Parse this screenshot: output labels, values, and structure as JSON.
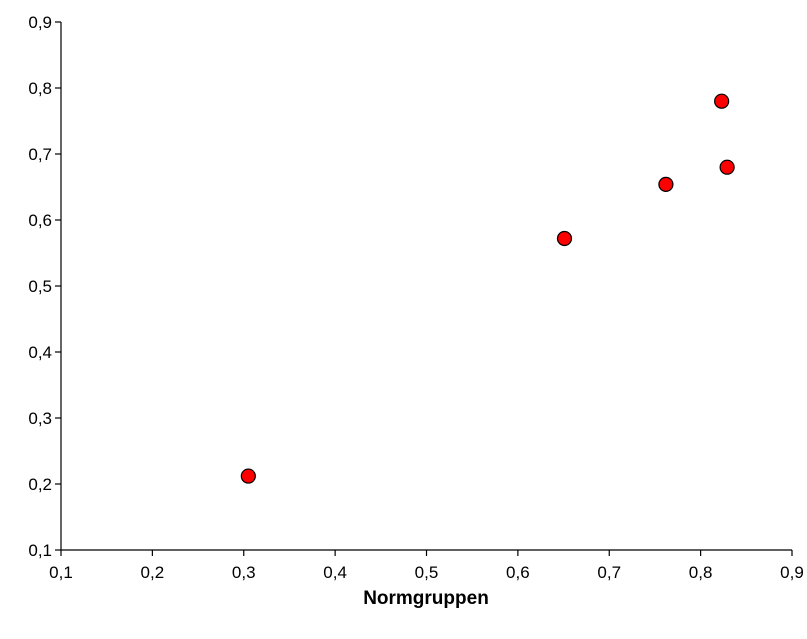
{
  "chart_data": {
    "type": "scatter",
    "title": "",
    "xlabel": "Normgruppen",
    "ylabel": "",
    "xlim": [
      0.1,
      0.9
    ],
    "ylim": [
      0.1,
      0.9
    ],
    "x_ticks": [
      "0,1",
      "0,2",
      "0,3",
      "0,4",
      "0,5",
      "0,6",
      "0,7",
      "0,8",
      "0,9"
    ],
    "y_ticks": [
      "0,1",
      "0,2",
      "0,3",
      "0,4",
      "0,5",
      "0,6",
      "0,7",
      "0,8",
      "0,9"
    ],
    "grid": false,
    "legend": "none",
    "marker_color": "#ff0000",
    "marker_edge_color": "#000000",
    "series": [
      {
        "points": [
          {
            "x": 0.305,
            "y": 0.212
          },
          {
            "x": 0.651,
            "y": 0.572
          },
          {
            "x": 0.762,
            "y": 0.654
          },
          {
            "x": 0.823,
            "y": 0.78
          },
          {
            "x": 0.829,
            "y": 0.68
          }
        ]
      }
    ]
  }
}
